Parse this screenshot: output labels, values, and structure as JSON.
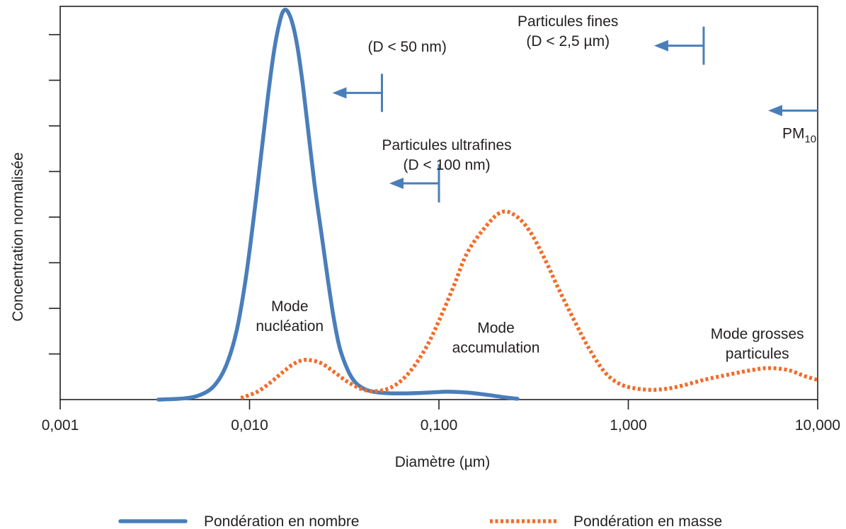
{
  "chart_data": {
    "type": "line",
    "x_scale": "log",
    "xlim": [
      0.001,
      10
    ],
    "ylim": [
      0,
      1
    ],
    "grid": false,
    "xlabel": "Diamètre (µm)",
    "ylabel": "Concentration normalisée",
    "x_ticks": [
      {
        "value": 0.001,
        "label": "0,001"
      },
      {
        "value": 0.01,
        "label": "0,010"
      },
      {
        "value": 0.1,
        "label": "0,100"
      },
      {
        "value": 1,
        "label": "1,000"
      },
      {
        "value": 10,
        "label": "10,000"
      }
    ],
    "y_tick_count": 8,
    "series": [
      {
        "name": "Pondération en nombre",
        "color": "#4a7ebb",
        "style": "solid",
        "points": [
          [
            0.0033,
            0.0
          ],
          [
            0.0045,
            0.003
          ],
          [
            0.0055,
            0.012
          ],
          [
            0.0065,
            0.035
          ],
          [
            0.0075,
            0.085
          ],
          [
            0.0085,
            0.17
          ],
          [
            0.0095,
            0.3
          ],
          [
            0.0105,
            0.46
          ],
          [
            0.0115,
            0.62
          ],
          [
            0.0125,
            0.77
          ],
          [
            0.0135,
            0.89
          ],
          [
            0.0145,
            0.965
          ],
          [
            0.0152,
            0.99
          ],
          [
            0.016,
            0.985
          ],
          [
            0.017,
            0.95
          ],
          [
            0.018,
            0.89
          ],
          [
            0.019,
            0.81
          ],
          [
            0.02,
            0.72
          ],
          [
            0.022,
            0.55
          ],
          [
            0.024,
            0.42
          ],
          [
            0.026,
            0.3
          ],
          [
            0.028,
            0.2
          ],
          [
            0.03,
            0.13
          ],
          [
            0.033,
            0.075
          ],
          [
            0.036,
            0.045
          ],
          [
            0.04,
            0.028
          ],
          [
            0.045,
            0.02
          ],
          [
            0.055,
            0.016
          ],
          [
            0.07,
            0.016
          ],
          [
            0.09,
            0.018
          ],
          [
            0.11,
            0.02
          ],
          [
            0.14,
            0.018
          ],
          [
            0.18,
            0.012
          ],
          [
            0.22,
            0.006
          ],
          [
            0.26,
            0.002
          ]
        ]
      },
      {
        "name": "Pondération en masse",
        "color": "#f26b2a",
        "style": "dotted",
        "points": [
          [
            0.009,
            0.004
          ],
          [
            0.011,
            0.02
          ],
          [
            0.013,
            0.045
          ],
          [
            0.015,
            0.07
          ],
          [
            0.017,
            0.09
          ],
          [
            0.019,
            0.1
          ],
          [
            0.021,
            0.1
          ],
          [
            0.024,
            0.092
          ],
          [
            0.028,
            0.07
          ],
          [
            0.033,
            0.045
          ],
          [
            0.04,
            0.025
          ],
          [
            0.048,
            0.022
          ],
          [
            0.058,
            0.035
          ],
          [
            0.07,
            0.07
          ],
          [
            0.085,
            0.13
          ],
          [
            0.1,
            0.2
          ],
          [
            0.12,
            0.29
          ],
          [
            0.14,
            0.37
          ],
          [
            0.17,
            0.43
          ],
          [
            0.21,
            0.475
          ],
          [
            0.25,
            0.47
          ],
          [
            0.3,
            0.43
          ],
          [
            0.36,
            0.36
          ],
          [
            0.43,
            0.28
          ],
          [
            0.52,
            0.2
          ],
          [
            0.62,
            0.13
          ],
          [
            0.75,
            0.07
          ],
          [
            0.9,
            0.04
          ],
          [
            1.1,
            0.028
          ],
          [
            1.4,
            0.025
          ],
          [
            1.8,
            0.032
          ],
          [
            2.5,
            0.05
          ],
          [
            3.5,
            0.065
          ],
          [
            4.5,
            0.075
          ],
          [
            5.5,
            0.08
          ],
          [
            7.0,
            0.075
          ],
          [
            8.5,
            0.06
          ],
          [
            10.0,
            0.05
          ]
        ]
      }
    ],
    "annotations": [
      {
        "name": "pm10",
        "text": "PM",
        "sub": "10",
        "x": 8.0,
        "y": 0.665
      },
      {
        "name": "fines",
        "lines": [
          "Particules fines",
          "(D < 2,5 µm)"
        ],
        "x": 0.48,
        "y": 0.95
      },
      {
        "name": "ultrafines",
        "lines": [
          "Particules ultrafines",
          "(D < 100 nm)"
        ],
        "x": 0.11,
        "y": 0.635
      },
      {
        "name": "d50",
        "lines": [
          "(D < 50 nm)"
        ],
        "x": 0.068,
        "y": 0.885
      },
      {
        "name": "mode-nucleation",
        "lines": [
          "Mode",
          "nucléation"
        ],
        "x": 0.0163,
        "y": 0.225
      },
      {
        "name": "mode-accumulation",
        "lines": [
          "Mode",
          "accumulation"
        ],
        "x": 0.2,
        "y": 0.17
      },
      {
        "name": "mode-grosses",
        "lines": [
          "Mode grosses",
          "particules"
        ],
        "x": 4.8,
        "y": 0.155
      }
    ],
    "cutoff_markers": [
      {
        "name": "fines",
        "x": 2.5,
        "y": 0.9
      },
      {
        "name": "pm10",
        "x": 10,
        "y": 0.735
      },
      {
        "name": "d50",
        "x": 0.05,
        "y": 0.78
      },
      {
        "name": "ultrafines",
        "x": 0.1,
        "y": 0.55
      }
    ]
  }
}
